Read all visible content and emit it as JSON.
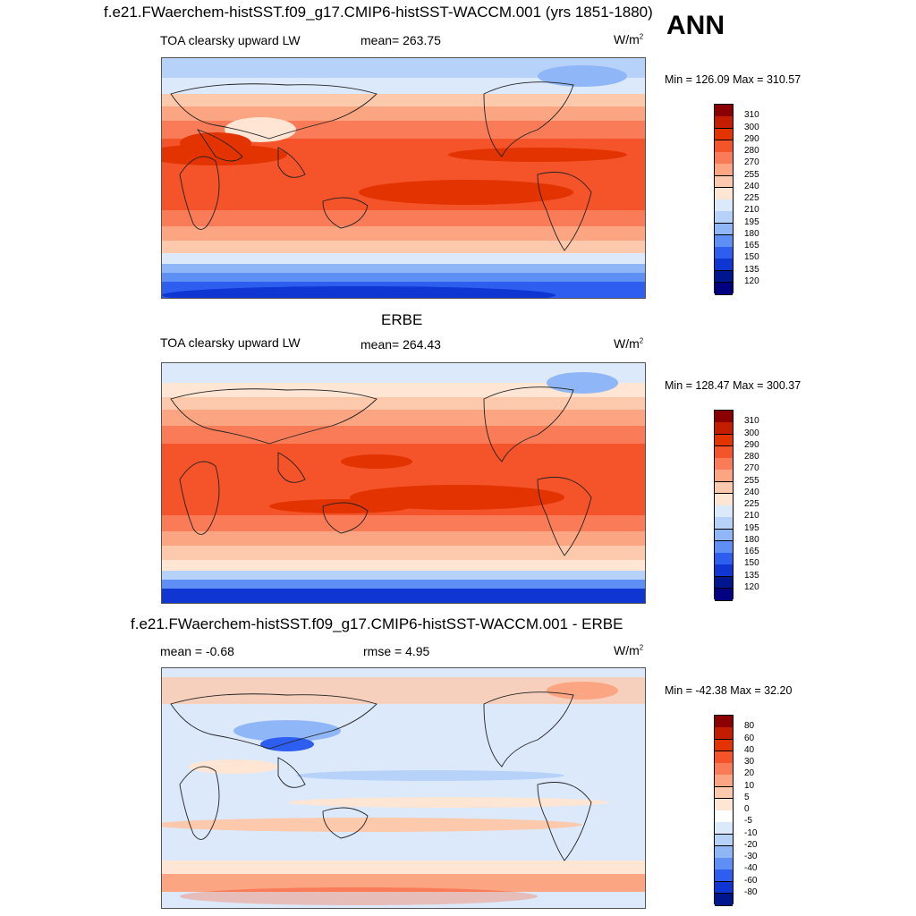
{
  "header": {
    "case_title": "f.e21.FWaerchem-histSST.f09_g17.CMIP6-histSST-WACCM.001 (yrs 1851-1880)",
    "season": "ANN"
  },
  "panel1": {
    "variable": "TOA clearsky upward LW",
    "mean_text": "mean= 263.75",
    "unit_base": "W/m",
    "unit_exp": "2",
    "minmax_text": "Min = 126.09 Max = 310.57"
  },
  "panel2": {
    "title": "ERBE",
    "variable": "TOA clearsky upward LW",
    "mean_text": "mean= 264.43",
    "unit_base": "W/m",
    "unit_exp": "2",
    "minmax_text": "Min = 128.47 Max = 300.37"
  },
  "panel3": {
    "title": "f.e21.FWaerchem-histSST.f09_g17.CMIP6-histSST-WACCM.001 - ERBE",
    "mean_text": "mean =  -0.68",
    "rmse_text": "rmse =   4.95",
    "unit_base": "W/m",
    "unit_exp": "2",
    "minmax_text": "Min = -42.38 Max =  32.20"
  },
  "colorbar_abs": {
    "labels": [
      "310",
      "300",
      "290",
      "280",
      "270",
      "255",
      "240",
      "225",
      "210",
      "195",
      "180",
      "165",
      "150",
      "135",
      "120"
    ],
    "colors": [
      "#8b0000",
      "#c41c00",
      "#e23300",
      "#f5532a",
      "#f97b57",
      "#fba583",
      "#fdc9ac",
      "#fee5d4",
      "#dbe9fb",
      "#b7d2f9",
      "#8fb6f6",
      "#5d8ff4",
      "#2e5ef0",
      "#0f35d2",
      "#00168f",
      "#000080"
    ]
  },
  "colorbar_diff": {
    "labels": [
      "80",
      "60",
      "40",
      "30",
      "20",
      "10",
      "5",
      "0",
      "-5",
      "-10",
      "-20",
      "-30",
      "-40",
      "-60",
      "-80"
    ],
    "colors": [
      "#8b0000",
      "#c41c00",
      "#e23300",
      "#f5532a",
      "#f97b57",
      "#fba583",
      "#fdc9ac",
      "#fee5d4",
      "#ffffff",
      "#dbe9fb",
      "#b7d2f9",
      "#8fb6f6",
      "#5d8ff4",
      "#2e5ef0",
      "#0f35d2",
      "#00168f"
    ]
  }
}
